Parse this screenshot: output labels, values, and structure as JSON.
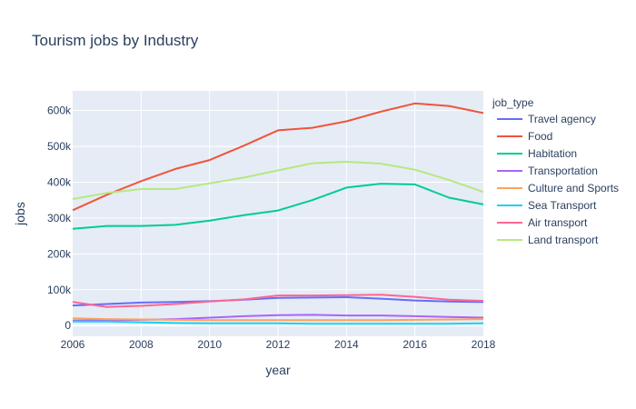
{
  "chart_data": {
    "type": "line",
    "title": "Tourism jobs by Industry",
    "xlabel": "year",
    "ylabel": "jobs",
    "legend_title": "job_type",
    "legend_position": "right",
    "grid": true,
    "xlim": [
      2006,
      2018
    ],
    "ylim": [
      -30000,
      655000
    ],
    "x_ticks": [
      2006,
      2008,
      2010,
      2012,
      2014,
      2016,
      2018
    ],
    "x_tick_labels": [
      "2006",
      "2008",
      "2010",
      "2012",
      "2014",
      "2016",
      "2018"
    ],
    "y_ticks": [
      0,
      100000,
      200000,
      300000,
      400000,
      500000,
      600000
    ],
    "y_tick_labels": [
      "0",
      "100k",
      "200k",
      "300k",
      "400k",
      "500k",
      "600k"
    ],
    "x": [
      2006,
      2007,
      2008,
      2009,
      2010,
      2011,
      2012,
      2013,
      2014,
      2015,
      2016,
      2017,
      2018
    ],
    "series": [
      {
        "name": "Travel agency",
        "color": "#636efa",
        "values": [
          56000,
          60000,
          64000,
          66000,
          68000,
          72000,
          77000,
          78000,
          79000,
          75000,
          70000,
          67000,
          66000
        ]
      },
      {
        "name": "Food",
        "color": "#ef553b",
        "values": [
          322000,
          365000,
          403000,
          437000,
          462000,
          502000,
          545000,
          552000,
          570000,
          597000,
          620000,
          613000,
          593000
        ]
      },
      {
        "name": "Habitation",
        "color": "#00cc96",
        "values": [
          270000,
          278000,
          278000,
          281000,
          293000,
          308000,
          321000,
          350000,
          385000,
          396000,
          394000,
          357000,
          338000
        ]
      },
      {
        "name": "Transportation",
        "color": "#ab63fa",
        "values": [
          14000,
          15000,
          16000,
          18000,
          22000,
          26000,
          29000,
          30000,
          28000,
          28000,
          26000,
          24000,
          22000
        ]
      },
      {
        "name": "Culture and Sports",
        "color": "#ffa15a",
        "values": [
          20000,
          18000,
          17000,
          16000,
          15000,
          15000,
          15000,
          15000,
          15000,
          15000,
          16000,
          17000,
          18000
        ]
      },
      {
        "name": "Sea Transport",
        "color": "#19d3f3",
        "values": [
          11000,
          11000,
          9000,
          7000,
          6000,
          6000,
          6000,
          5000,
          5000,
          5000,
          5000,
          5000,
          6000
        ]
      },
      {
        "name": "Air transport",
        "color": "#ff6692",
        "values": [
          66000,
          52000,
          55000,
          60000,
          67000,
          73000,
          84000,
          84000,
          85000,
          86000,
          80000,
          72000,
          69000
        ]
      },
      {
        "name": "Land transport",
        "color": "#b6e880",
        "values": [
          353000,
          370000,
          381000,
          381000,
          397000,
          413000,
          433000,
          453000,
          457000,
          452000,
          435000,
          406000,
          373000
        ]
      }
    ]
  }
}
